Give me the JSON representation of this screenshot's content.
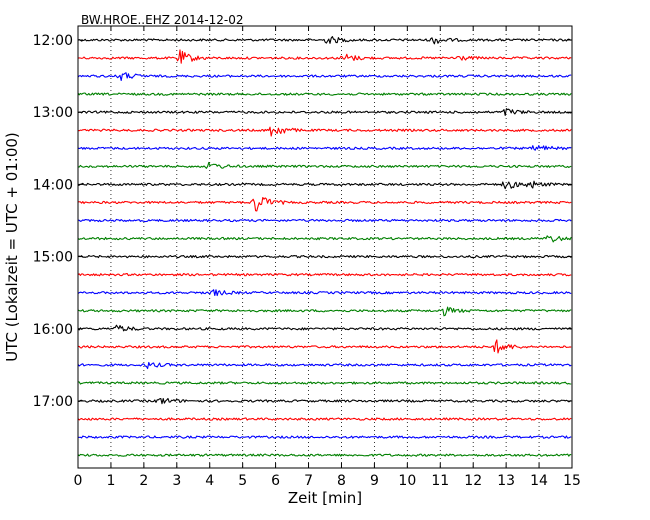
{
  "chart_data": {
    "type": "line",
    "title": "BW.HROE..EHZ 2014-12-02",
    "xlabel": "Zeit  [min]",
    "ylabel": "UTC (Lokalzeit = UTC + 01:00)",
    "xlim": [
      0,
      15
    ],
    "x_ticks": [
      "0",
      "1",
      "2",
      "3",
      "4",
      "5",
      "6",
      "7",
      "8",
      "9",
      "10",
      "11",
      "12",
      "13",
      "14",
      "15"
    ],
    "y_ticks": [
      "12:00",
      "13:00",
      "14:00",
      "15:00",
      "16:00",
      "17:00"
    ],
    "vertical_grid": "dotted",
    "row_interval_min": 15,
    "colors": [
      "#000000",
      "#ff0000",
      "#0000ff",
      "#008000"
    ],
    "series": [
      {
        "start": "12:00",
        "color": "#000000",
        "events": [
          {
            "minute": 7.6,
            "amp": 1.3
          },
          {
            "minute": 10.8,
            "amp": 1.2
          }
        ]
      },
      {
        "start": "12:15",
        "color": "#ff0000",
        "events": [
          {
            "minute": 3.1,
            "amp": 2.4
          },
          {
            "minute": 8.1,
            "amp": 1.4
          },
          {
            "minute": 11.5,
            "amp": 0.9
          }
        ]
      },
      {
        "start": "12:30",
        "color": "#0000ff",
        "events": [
          {
            "minute": 1.3,
            "amp": 1.4
          }
        ]
      },
      {
        "start": "12:45",
        "color": "#008000",
        "events": []
      },
      {
        "start": "13:00",
        "color": "#000000",
        "events": [
          {
            "minute": 13.0,
            "amp": 1.2
          }
        ]
      },
      {
        "start": "13:15",
        "color": "#ff0000",
        "events": [
          {
            "minute": 5.9,
            "amp": 2.4
          }
        ]
      },
      {
        "start": "13:30",
        "color": "#0000ff",
        "events": [
          {
            "minute": 13.9,
            "amp": 1.3
          }
        ]
      },
      {
        "start": "13:45",
        "color": "#008000",
        "events": [
          {
            "minute": 4.0,
            "amp": 1.2
          }
        ]
      },
      {
        "start": "14:00",
        "color": "#000000",
        "events": [
          {
            "minute": 13.0,
            "amp": 1.6
          },
          {
            "minute": 13.7,
            "amp": 1.2
          }
        ]
      },
      {
        "start": "14:15",
        "color": "#ff0000",
        "events": [
          {
            "minute": 5.4,
            "amp": 3.4
          }
        ]
      },
      {
        "start": "14:30",
        "color": "#0000ff",
        "events": []
      },
      {
        "start": "14:45",
        "color": "#008000",
        "events": [
          {
            "minute": 14.3,
            "amp": 1.3
          }
        ]
      },
      {
        "start": "15:00",
        "color": "#000000",
        "events": []
      },
      {
        "start": "15:15",
        "color": "#ff0000",
        "events": []
      },
      {
        "start": "15:30",
        "color": "#0000ff",
        "events": [
          {
            "minute": 4.1,
            "amp": 1.0
          }
        ]
      },
      {
        "start": "15:45",
        "color": "#008000",
        "events": [
          {
            "minute": 11.1,
            "amp": 1.4
          }
        ]
      },
      {
        "start": "16:00",
        "color": "#000000",
        "events": [
          {
            "minute": 1.2,
            "amp": 1.1
          }
        ]
      },
      {
        "start": "16:15",
        "color": "#ff0000",
        "events": [
          {
            "minute": 12.7,
            "amp": 2.2
          }
        ]
      },
      {
        "start": "16:30",
        "color": "#0000ff",
        "events": [
          {
            "minute": 2.1,
            "amp": 0.9
          }
        ]
      },
      {
        "start": "16:45",
        "color": "#008000",
        "events": []
      },
      {
        "start": "17:00",
        "color": "#000000",
        "events": [
          {
            "minute": 2.5,
            "amp": 1.1
          }
        ]
      },
      {
        "start": "17:15",
        "color": "#ff0000",
        "events": []
      },
      {
        "start": "17:30",
        "color": "#0000ff",
        "events": []
      },
      {
        "start": "17:45",
        "color": "#008000",
        "events": []
      }
    ]
  }
}
